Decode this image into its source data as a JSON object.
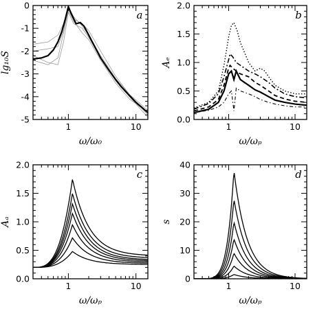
{
  "chart_data": [
    {
      "panel": "a",
      "type": "line",
      "panel_label": "a",
      "xlabel": "ω/ω₀",
      "ylabel": "lg₁₀S",
      "xscale": "log",
      "xlim": [
        0.3,
        15
      ],
      "ylim": [
        -5,
        0
      ],
      "xticks": [
        {
          "v": 1,
          "label": "1"
        },
        {
          "v": 10,
          "label": "10"
        }
      ],
      "yticks": [
        {
          "v": 0,
          "label": "0"
        },
        {
          "v": -1,
          "label": "-1"
        },
        {
          "v": -2,
          "label": "-2"
        },
        {
          "v": -3,
          "label": "-3"
        },
        {
          "v": -4,
          "label": "-4"
        },
        {
          "v": -5,
          "label": "-5"
        }
      ],
      "series": [
        {
          "style": "thin-grey",
          "x": [
            0.3,
            0.5,
            0.7,
            0.85,
            1.0,
            1.2,
            1.6,
            2.0,
            3.0,
            5.0,
            8.0,
            15.0
          ],
          "y": [
            -1.7,
            -1.6,
            -1.3,
            -0.8,
            -0.05,
            -0.5,
            -0.9,
            -1.3,
            -2.2,
            -3.2,
            -3.9,
            -4.8
          ]
        },
        {
          "style": "thin-grey",
          "x": [
            0.3,
            0.5,
            0.7,
            0.85,
            1.0,
            1.2,
            1.6,
            2.0,
            3.0,
            5.0,
            8.0,
            15.0
          ],
          "y": [
            -2.4,
            -2.6,
            -2.3,
            -1.2,
            -0.2,
            -0.7,
            -1.2,
            -1.5,
            -2.4,
            -3.4,
            -4.1,
            -4.7
          ]
        },
        {
          "style": "thin-grey",
          "x": [
            0.3,
            0.5,
            0.7,
            0.85,
            1.0,
            1.2,
            1.6,
            2.0,
            3.0,
            5.0,
            8.0,
            15.0
          ],
          "y": [
            -2.0,
            -1.9,
            -1.8,
            -1.1,
            -0.1,
            -0.6,
            -0.8,
            -1.1,
            -2.0,
            -3.1,
            -3.9,
            -4.6
          ]
        },
        {
          "style": "thin-grey",
          "x": [
            0.3,
            0.5,
            0.7,
            0.85,
            1.0,
            1.2,
            1.6,
            2.0,
            3.0,
            5.0,
            8.0,
            15.0
          ],
          "y": [
            -2.2,
            -2.5,
            -2.6,
            -1.6,
            -0.3,
            -0.8,
            -1.0,
            -1.4,
            -2.3,
            -3.3,
            -4.0,
            -4.9
          ]
        },
        {
          "style": "thick-black",
          "x": [
            0.3,
            0.4,
            0.5,
            0.6,
            0.7,
            0.8,
            0.9,
            1.0,
            1.1,
            1.3,
            1.5,
            1.7,
            2.0,
            2.5,
            3.0,
            4.0,
            5.0,
            6.0,
            8.0,
            10.0,
            12.0,
            15.0
          ],
          "y": [
            -2.35,
            -2.3,
            -2.2,
            -1.95,
            -1.6,
            -1.15,
            -0.6,
            -0.05,
            -0.35,
            -0.8,
            -0.75,
            -0.9,
            -1.3,
            -1.85,
            -2.3,
            -2.85,
            -3.25,
            -3.55,
            -3.95,
            -4.25,
            -4.45,
            -4.7
          ]
        }
      ]
    },
    {
      "panel": "b",
      "type": "line",
      "panel_label": "b",
      "xlabel": "ω/ωₚ",
      "ylabel": "Aₑ",
      "xscale": "log",
      "xlim": [
        0.3,
        15
      ],
      "ylim": [
        0,
        2
      ],
      "xticks": [
        {
          "v": 1,
          "label": "1"
        },
        {
          "v": 10,
          "label": "10"
        }
      ],
      "yticks": [
        {
          "v": 0,
          "label": "0.0"
        },
        {
          "v": 0.5,
          "label": "0.5"
        },
        {
          "v": 1,
          "label": "1.0"
        },
        {
          "v": 1.5,
          "label": "1.5"
        },
        {
          "v": 2,
          "label": "2.0"
        }
      ],
      "series": [
        {
          "style": "dotted",
          "x": [
            0.3,
            0.5,
            0.7,
            0.85,
            1.0,
            1.1,
            1.2,
            1.35,
            1.5,
            2.0,
            2.5,
            3.0,
            3.5,
            4.0,
            5.0,
            7.0,
            10.0,
            15.0
          ],
          "y": [
            0.2,
            0.3,
            0.5,
            0.95,
            1.45,
            1.65,
            1.7,
            1.55,
            1.35,
            1.0,
            0.85,
            0.9,
            0.85,
            0.75,
            0.6,
            0.5,
            0.45,
            0.45
          ]
        },
        {
          "style": "dash-dot",
          "x": [
            0.3,
            0.5,
            0.7,
            0.85,
            1.0,
            1.05,
            1.15,
            1.3,
            1.5,
            2.0,
            2.5,
            3.0,
            4.0,
            5.0,
            7.0,
            10.0,
            15.0
          ],
          "y": [
            0.18,
            0.28,
            0.45,
            0.75,
            1.05,
            1.15,
            1.1,
            1.0,
            0.95,
            0.85,
            0.8,
            0.75,
            0.65,
            0.55,
            0.45,
            0.4,
            0.38
          ]
        },
        {
          "style": "dashed",
          "x": [
            0.3,
            0.5,
            0.7,
            0.85,
            1.0,
            1.05,
            1.15,
            1.3,
            1.5,
            2.0,
            2.5,
            3.0,
            4.0,
            5.0,
            7.0,
            10.0,
            15.0
          ],
          "y": [
            0.15,
            0.22,
            0.35,
            0.6,
            0.9,
            0.95,
            0.9,
            0.85,
            0.8,
            0.75,
            0.65,
            0.6,
            0.5,
            0.42,
            0.36,
            0.32,
            0.3
          ]
        },
        {
          "style": "solid-thick",
          "x": [
            0.3,
            0.5,
            0.7,
            0.85,
            1.0,
            1.1,
            1.2,
            1.3,
            1.5,
            2.0,
            2.5,
            3.0,
            4.0,
            5.0,
            7.0,
            10.0,
            15.0
          ],
          "y": [
            0.12,
            0.18,
            0.3,
            0.5,
            0.8,
            0.85,
            0.7,
            0.85,
            0.7,
            0.6,
            0.52,
            0.48,
            0.4,
            0.34,
            0.3,
            0.27,
            0.25
          ]
        },
        {
          "style": "dash-dot-thin",
          "x": [
            0.3,
            0.5,
            0.7,
            0.85,
            1.0,
            1.1,
            1.2,
            1.3,
            1.5,
            2.0,
            2.5,
            3.0,
            4.0,
            5.0,
            7.0,
            10.0,
            15.0
          ],
          "y": [
            0.12,
            0.16,
            0.22,
            0.3,
            0.45,
            0.5,
            0.15,
            0.55,
            0.5,
            0.45,
            0.4,
            0.35,
            0.3,
            0.27,
            0.24,
            0.22,
            0.22
          ]
        }
      ]
    },
    {
      "panel": "c",
      "type": "line",
      "panel_label": "c",
      "xlabel": "ω/ωₚ",
      "ylabel": "Aₐ",
      "xscale": "log",
      "xlim": [
        0.3,
        15
      ],
      "ylim": [
        0,
        2
      ],
      "xticks": [
        {
          "v": 1,
          "label": "1"
        },
        {
          "v": 10,
          "label": "10"
        }
      ],
      "yticks": [
        {
          "v": 0,
          "label": "0.0"
        },
        {
          "v": 0.5,
          "label": "0.5"
        },
        {
          "v": 1,
          "label": "1.0"
        },
        {
          "v": 1.5,
          "label": "1.5"
        },
        {
          "v": 2,
          "label": "2.0"
        }
      ],
      "curve_model": {
        "peak_x": 1.15,
        "base_low": 0.2,
        "tail_values": [
          0.25,
          0.27,
          0.29,
          0.31,
          0.33,
          0.36,
          0.4
        ]
      },
      "series_peaks": [
        0.48,
        0.72,
        0.95,
        1.15,
        1.32,
        1.5,
        1.75
      ]
    },
    {
      "panel": "d",
      "type": "line",
      "panel_label": "d",
      "xlabel": "ω/ωₚ",
      "ylabel": "s",
      "xscale": "log",
      "xlim": [
        0.3,
        15
      ],
      "ylim": [
        0,
        40
      ],
      "xticks": [
        {
          "v": 1,
          "label": "1"
        },
        {
          "v": 10,
          "label": "10"
        }
      ],
      "yticks": [
        {
          "v": 0,
          "label": "0"
        },
        {
          "v": 10,
          "label": "10"
        },
        {
          "v": 20,
          "label": "20"
        },
        {
          "v": 30,
          "label": "30"
        },
        {
          "v": 40,
          "label": "40"
        }
      ],
      "curve_model": {
        "peak_x": 1.2
      },
      "series_peaks": [
        1.5,
        4.5,
        9,
        14,
        20,
        28,
        38
      ]
    }
  ]
}
